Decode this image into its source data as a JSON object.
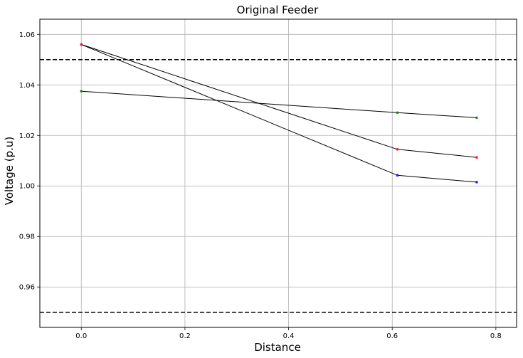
{
  "chart_data": {
    "type": "line",
    "title": "Original Feeder",
    "xlabel": "Distance",
    "ylabel": "Voltage (p.u)",
    "xlim": [
      -0.08,
      0.84
    ],
    "ylim": [
      0.944,
      1.066
    ],
    "xticks": [
      0.0,
      0.2,
      0.4,
      0.6,
      0.8
    ],
    "xtick_labels": [
      "0.0",
      "0.2",
      "0.4",
      "0.6",
      "0.8"
    ],
    "yticks": [
      0.96,
      0.98,
      1.0,
      1.02,
      1.04,
      1.06
    ],
    "ytick_labels": [
      "0.96",
      "0.98",
      "1.00",
      "1.02",
      "1.04",
      "1.06"
    ],
    "grid": true,
    "limit_lines": [
      1.05,
      0.95
    ],
    "series": [
      {
        "color": "#1a1aff",
        "line_color": "#000000",
        "x": [
          0.0,
          0.61,
          0.763
        ],
        "y": [
          1.056,
          1.0042,
          1.0015
        ]
      },
      {
        "color": "#ff1a1a",
        "line_color": "#000000",
        "x": [
          0.0,
          0.61,
          0.763
        ],
        "y": [
          1.056,
          1.0145,
          1.0113
        ]
      },
      {
        "color": "#1a8c1a",
        "line_color": "#000000",
        "x": [
          0.0,
          0.61,
          0.763
        ],
        "y": [
          1.0375,
          1.029,
          1.027
        ]
      }
    ]
  }
}
